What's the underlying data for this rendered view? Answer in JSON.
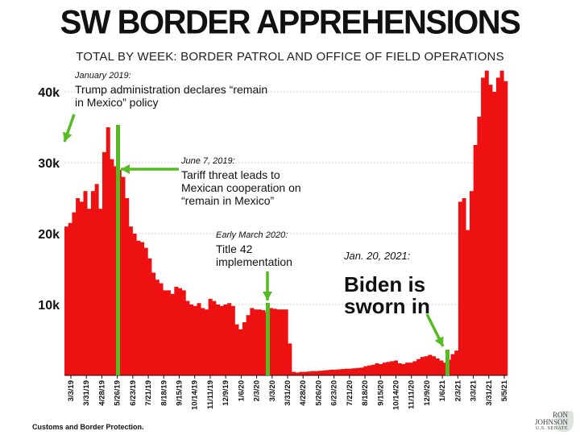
{
  "chart_data": {
    "type": "bar",
    "title": "SW BORDER APPREHENSIONS",
    "subtitle": "TOTAL BY WEEK: BORDER PATROL AND OFFICE OF FIELD OPERATIONS",
    "xlabel": "",
    "ylabel": "",
    "ylim": [
      0,
      43000
    ],
    "yticks": [
      10000,
      20000,
      30000,
      40000
    ],
    "ytick_labels": [
      "10k",
      "20k",
      "30k",
      "40k"
    ],
    "xtick_labels": [
      "3/3/19",
      "3/31/19",
      "4/28/19",
      "5/26/19",
      "6/23/19",
      "7/21/19",
      "8/18/19",
      "9/15/19",
      "10/14/19",
      "11/11/19",
      "12/9/19",
      "1/6/20",
      "2/3/20",
      "3/3/20",
      "3/31/20",
      "4/28/20",
      "5/26/20",
      "6/23/20",
      "7/21/20",
      "8/18/20",
      "9/15/20",
      "10/14/20",
      "11/11/20",
      "12/9/20",
      "1/6/21",
      "2/3/21",
      "3/3/21",
      "3/31/21",
      "5/5/21"
    ],
    "values": [
      21000,
      21500,
      23000,
      25000,
      24500,
      26000,
      23500,
      26000,
      27000,
      23500,
      31500,
      35000,
      30500,
      29500,
      29000,
      28000,
      25000,
      21000,
      20000,
      19000,
      18800,
      18000,
      16500,
      14500,
      13500,
      13000,
      12000,
      12000,
      11500,
      12500,
      12300,
      12000,
      10500,
      10000,
      9800,
      10200,
      9500,
      9300,
      10800,
      10500,
      10000,
      9800,
      10000,
      10200,
      9800,
      7200,
      6500,
      7500,
      8500,
      9500,
      9300,
      9300,
      9200,
      8900,
      9500,
      9400,
      9300,
      9300,
      9300,
      4500,
      500,
      400,
      500,
      500,
      550,
      600,
      600,
      650,
      700,
      750,
      800,
      800,
      850,
      900,
      950,
      950,
      1000,
      1050,
      1100,
      1300,
      1400,
      1500,
      1700,
      1600,
      1800,
      1900,
      2000,
      2100,
      1700,
      1600,
      1800,
      1800,
      2000,
      2300,
      2600,
      2700,
      2900,
      2700,
      2400,
      2100,
      1800,
      2200,
      3000,
      3500,
      24500,
      25000,
      20500,
      26000,
      32500,
      36500,
      42000,
      43000,
      41000,
      40000,
      42000,
      43000,
      41500
    ],
    "series_color": "#ee1111",
    "marker_color": "#55bb22",
    "annotations": [
      {
        "date": "January 2019:",
        "text": "Trump administration declares “remain in Mexico” policy"
      },
      {
        "date": "June 7, 2019:",
        "text": "Tariff threat leads to Mexican cooperation on “remain in Mexico”"
      },
      {
        "date": "Early March 2020:",
        "text": "Title 42 implementation"
      },
      {
        "date": "Jan. 20, 2021:",
        "text": "Biden is sworn in"
      }
    ],
    "source": "Customs and Border Protection.",
    "logo": {
      "line1": "RON",
      "line2": "JOHNSON",
      "line3": "U.S. SENATE"
    }
  }
}
